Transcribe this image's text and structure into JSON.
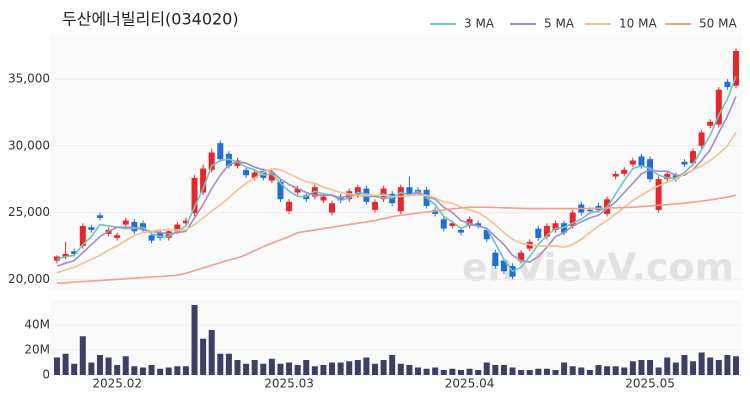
{
  "chart_data": [
    {
      "type": "candlestick",
      "title": "두산에너빌리티(034020)",
      "watermark": "enVievV.com",
      "categories": [
        null,
        null,
        null,
        null,
        null,
        null,
        null,
        "2025.02",
        null,
        null,
        null,
        null,
        null,
        null,
        null,
        null,
        null,
        null,
        null,
        null,
        null,
        null,
        null,
        null,
        null,
        null,
        null,
        "2025.03",
        null,
        null,
        null,
        null,
        null,
        null,
        null,
        null,
        null,
        null,
        null,
        null,
        null,
        null,
        null,
        null,
        null,
        null,
        null,
        null,
        "2025.04",
        null,
        null,
        null,
        null,
        null,
        null,
        null,
        null,
        null,
        null,
        null,
        null,
        null,
        null,
        null,
        null,
        null,
        null,
        null,
        null,
        "2025.05",
        null,
        null,
        null,
        null,
        null,
        null,
        null,
        null,
        null,
        null
      ],
      "open": [
        21400,
        21700,
        22100,
        22500,
        23900,
        24800,
        23400,
        23100,
        24100,
        24300,
        24200,
        23300,
        23500,
        23100,
        23600,
        24200,
        24950,
        26500,
        28200,
        30200,
        29400,
        28500,
        28200,
        27600,
        28100,
        27400,
        27300,
        25100,
        26500,
        26300,
        26200,
        25900,
        25000,
        26200,
        26000,
        26300,
        26800,
        25200,
        26000,
        26400,
        25100,
        26900,
        26700,
        26700,
        25200,
        24500,
        24000,
        23700,
        24000,
        24200,
        23700,
        22000,
        21400,
        21000,
        21400,
        22300,
        23800,
        23200,
        23700,
        24200,
        24000,
        25600,
        25200,
        25500,
        24900,
        27700,
        27900,
        28600,
        29200,
        29000,
        25200,
        27500,
        27800,
        28800,
        28700,
        30000,
        31500,
        31600,
        34800,
        34500
      ],
      "high": [
        21800,
        22800,
        22300,
        24200,
        24100,
        25000,
        23900,
        23500,
        24600,
        24500,
        24400,
        23500,
        23700,
        23800,
        24300,
        24600,
        27800,
        28600,
        29800,
        30400,
        29600,
        29100,
        28400,
        28200,
        28300,
        28200,
        27500,
        26000,
        27000,
        26500,
        27100,
        26400,
        25900,
        26400,
        26800,
        27100,
        27000,
        26000,
        27000,
        26600,
        27100,
        27700,
        26900,
        26900,
        25400,
        24700,
        24400,
        23900,
        24700,
        24400,
        23900,
        22200,
        21600,
        21200,
        22200,
        23000,
        24000,
        24200,
        24400,
        24400,
        25200,
        25800,
        25400,
        25700,
        26200,
        28100,
        28400,
        29100,
        29400,
        29200,
        27700,
        28100,
        28000,
        29000,
        29800,
        31200,
        32000,
        34400,
        35000,
        37300
      ],
      "low": [
        21200,
        21500,
        21700,
        22300,
        23500,
        24400,
        23200,
        22900,
        23900,
        23400,
        23500,
        22700,
        22900,
        22900,
        23400,
        24000,
        24700,
        26300,
        28000,
        28800,
        28300,
        28300,
        27600,
        27400,
        27400,
        27200,
        25800,
        24900,
        26300,
        25800,
        26000,
        25700,
        24800,
        25700,
        25800,
        26100,
        25600,
        25000,
        25800,
        25500,
        24900,
        26200,
        26300,
        25300,
        24700,
        23600,
        23800,
        23300,
        23800,
        23800,
        22800,
        20800,
        20400,
        20000,
        21200,
        22100,
        22900,
        23000,
        23500,
        23300,
        23800,
        24800,
        24900,
        25000,
        24700,
        27500,
        27700,
        28400,
        28300,
        27300,
        25000,
        27300,
        27300,
        28400,
        28500,
        29800,
        31300,
        31400,
        34200,
        34300
      ],
      "close": [
        21700,
        21900,
        21900,
        24000,
        23700,
        24600,
        23700,
        23300,
        24400,
        23600,
        23700,
        22900,
        23100,
        23600,
        24100,
        24400,
        27600,
        28300,
        29500,
        29000,
        28500,
        28900,
        27800,
        28000,
        27600,
        28000,
        26000,
        25800,
        26800,
        26000,
        26900,
        26200,
        25700,
        25900,
        26600,
        26900,
        25800,
        25800,
        26800,
        25700,
        26900,
        26400,
        26500,
        25500,
        24900,
        23800,
        24200,
        23500,
        24500,
        24000,
        23000,
        21000,
        20600,
        20200,
        22000,
        22800,
        23100,
        24000,
        24200,
        23500,
        25000,
        25000,
        25100,
        25200,
        26000,
        27900,
        28200,
        28900,
        28500,
        27500,
        27500,
        27900,
        27500,
        28600,
        29600,
        31000,
        31800,
        34200,
        34400,
        37100
      ],
      "up_color": "#e8262b",
      "down_color": "#1f6fd6",
      "series": [
        {
          "name": "3 MA",
          "color": "#6cc5c0",
          "values": [
            21500,
            21700,
            21800,
            22600,
            23200,
            24100,
            24000,
            23900,
            23800,
            23800,
            23900,
            23400,
            23200,
            23200,
            23600,
            24000,
            25400,
            26800,
            28500,
            28900,
            29000,
            28800,
            28400,
            28200,
            27800,
            27900,
            27200,
            26600,
            26200,
            26200,
            26600,
            26400,
            26300,
            25900,
            26100,
            26500,
            26400,
            26200,
            26100,
            26100,
            26500,
            26300,
            26600,
            26100,
            25600,
            24700,
            24300,
            23800,
            24100,
            24000,
            23800,
            22700,
            21500,
            20600,
            20900,
            21700,
            22600,
            23300,
            23800,
            23900,
            24200,
            24500,
            25000,
            25100,
            25400,
            26400,
            27400,
            28300,
            28500,
            28300,
            27800,
            27600,
            27600,
            28000,
            28600,
            29700,
            30800,
            32300,
            33500,
            35200
          ]
        },
        {
          "name": "5 MA",
          "color": "#a08ec4",
          "values": [
            21000,
            21200,
            21400,
            22000,
            22600,
            23200,
            23600,
            23900,
            23900,
            23900,
            23700,
            23600,
            23500,
            23400,
            23500,
            23600,
            24600,
            25600,
            26800,
            27800,
            28600,
            28800,
            28700,
            28400,
            28200,
            28100,
            27500,
            27100,
            26800,
            26500,
            26300,
            26300,
            26300,
            26100,
            26300,
            26300,
            26200,
            26200,
            26400,
            26200,
            26200,
            26300,
            26500,
            26200,
            26000,
            25400,
            25000,
            24400,
            24200,
            24000,
            23800,
            23200,
            22600,
            21800,
            21400,
            21300,
            21700,
            22400,
            23200,
            23500,
            24000,
            24300,
            24600,
            24800,
            25300,
            25800,
            26500,
            27200,
            27900,
            28200,
            28100,
            28100,
            27800,
            27800,
            28200,
            28900,
            29700,
            31000,
            32200,
            33700
          ]
        },
        {
          "name": "10 MA",
          "color": "#f2c18e",
          "values": [
            20500,
            20700,
            20900,
            21200,
            21500,
            21800,
            22200,
            22500,
            22900,
            23300,
            23500,
            23600,
            23700,
            23700,
            23700,
            23700,
            24100,
            24600,
            25100,
            25600,
            26100,
            26700,
            27200,
            27600,
            28000,
            28300,
            28200,
            27900,
            27600,
            27300,
            27200,
            26900,
            26700,
            26500,
            26400,
            26300,
            26300,
            26300,
            26300,
            26200,
            26200,
            26300,
            26300,
            26300,
            26100,
            25800,
            25700,
            25400,
            25200,
            25000,
            24600,
            24100,
            23500,
            23000,
            22700,
            22600,
            22500,
            22500,
            22500,
            22400,
            22600,
            23000,
            23500,
            24000,
            24400,
            24900,
            25400,
            25900,
            26300,
            26700,
            27000,
            27300,
            27500,
            27900,
            28200,
            28500,
            28900,
            29400,
            30000,
            31000
          ]
        },
        {
          "name": "50 MA",
          "color": "#f2a08a",
          "values": [
            19700,
            19740,
            19790,
            19830,
            19870,
            19910,
            19960,
            20000,
            20040,
            20090,
            20130,
            20170,
            20210,
            20260,
            20300,
            20450,
            20650,
            20850,
            21050,
            21250,
            21450,
            21600,
            21850,
            22150,
            22450,
            22700,
            22950,
            23200,
            23500,
            23600,
            23700,
            23800,
            23900,
            24000,
            24100,
            24200,
            24300,
            24400,
            24550,
            24700,
            24800,
            24880,
            24960,
            25040,
            25120,
            25200,
            25280,
            25340,
            25400,
            25400,
            25400,
            25380,
            25360,
            25340,
            25320,
            25300,
            25300,
            25300,
            25300,
            25300,
            25300,
            25300,
            25300,
            25320,
            25340,
            25360,
            25380,
            25400,
            25450,
            25500,
            25550,
            25600,
            25650,
            25700,
            25780,
            25860,
            25950,
            26050,
            26150,
            26300
          ]
        }
      ],
      "ylim": [
        19200,
        38300
      ],
      "yticks": [
        {
          "value": 20000,
          "label": "20,000"
        },
        {
          "value": 25000,
          "label": "25,000"
        },
        {
          "value": 30000,
          "label": "30,000"
        },
        {
          "value": 35000,
          "label": "35,000"
        }
      ],
      "grid": true
    },
    {
      "type": "bar",
      "color": "#3d3f66",
      "values": [
        14000000,
        17000000,
        9000000,
        31000000,
        10000000,
        16000000,
        14000000,
        8000000,
        15000000,
        7000000,
        6000000,
        8000000,
        5000000,
        6000000,
        7000000,
        7000000,
        56000000,
        29000000,
        36000000,
        17000000,
        17000000,
        12000000,
        9000000,
        12000000,
        9000000,
        13000000,
        9000000,
        10000000,
        8000000,
        12000000,
        7000000,
        8000000,
        10000000,
        10000000,
        11000000,
        12000000,
        14000000,
        9000000,
        12000000,
        16000000,
        9000000,
        8000000,
        6000000,
        5000000,
        6000000,
        4000000,
        5000000,
        4000000,
        5000000,
        4000000,
        10000000,
        8000000,
        8000000,
        6000000,
        4000000,
        4000000,
        5000000,
        5000000,
        4000000,
        10000000,
        7000000,
        6000000,
        4000000,
        8000000,
        7000000,
        7000000,
        6000000,
        11000000,
        12000000,
        12000000,
        6000000,
        14000000,
        10000000,
        16000000,
        11000000,
        18000000,
        14000000,
        12000000,
        16000000,
        15000000
      ],
      "ylim": [
        0,
        60000000
      ],
      "yticks": [
        0,
        {
          "value": 20000000,
          "label": "20M"
        },
        {
          "value": 40000000,
          "label": "40M"
        }
      ]
    }
  ]
}
